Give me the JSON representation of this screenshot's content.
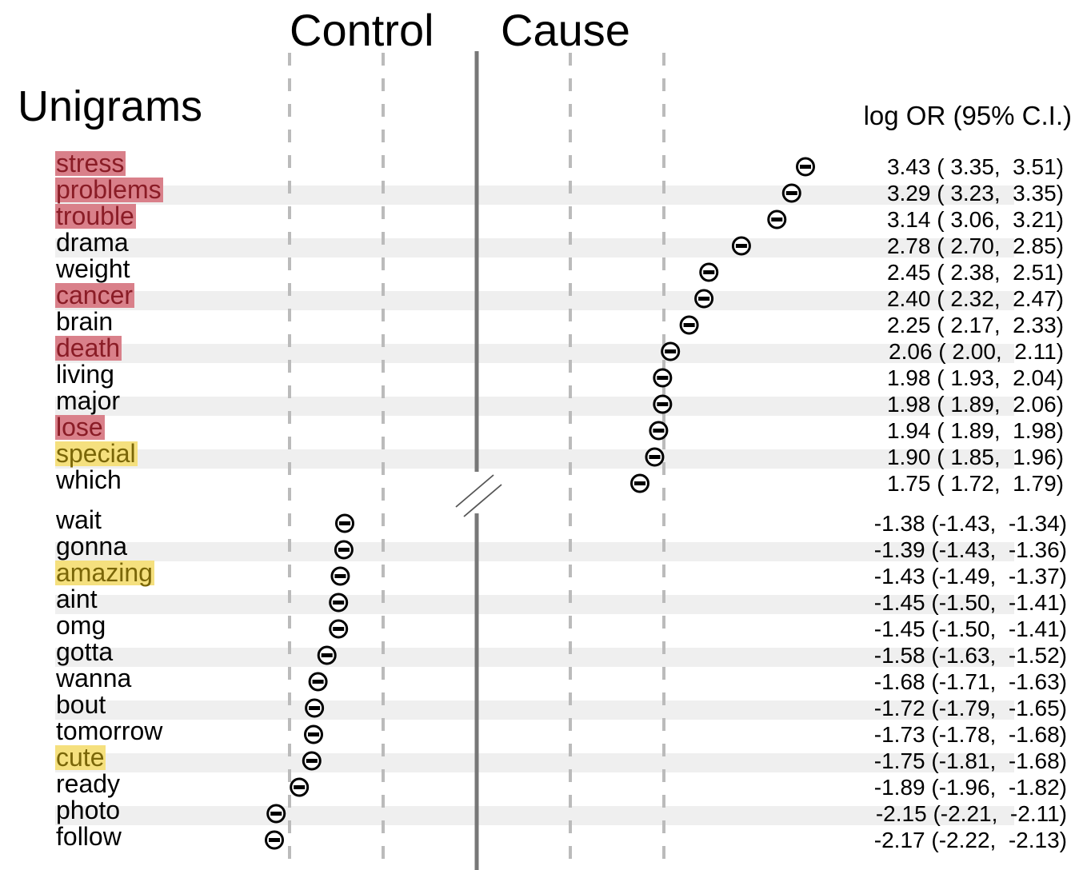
{
  "headers": {
    "control": "Control",
    "cause": "Cause",
    "section": "Unigrams",
    "or_column": "log OR (95% C.I.)"
  },
  "colors": {
    "negative_highlight": "#d9808a",
    "positive_highlight": "#f5e07e",
    "stripe": "#efefef",
    "grid": "#bbbbbb",
    "axis": "#777777"
  },
  "chart_data": {
    "type": "scatter",
    "title": "Unigrams",
    "xlabel": "",
    "ylabel": "",
    "grid": true,
    "groups": [
      {
        "name": "Cause",
        "rows": [
          {
            "word": "stress",
            "or": 3.43,
            "lo": 3.35,
            "hi": 3.51,
            "highlight": "negative",
            "or_text": "3.43",
            "lo_text": "3.35",
            "hi_text": "3.51"
          },
          {
            "word": "problems",
            "or": 3.29,
            "lo": 3.23,
            "hi": 3.35,
            "highlight": "negative",
            "or_text": "3.29",
            "lo_text": "3.23",
            "hi_text": "3.35"
          },
          {
            "word": "trouble",
            "or": 3.14,
            "lo": 3.06,
            "hi": 3.21,
            "highlight": "negative",
            "or_text": "3.14",
            "lo_text": "3.06",
            "hi_text": "3.21"
          },
          {
            "word": "drama",
            "or": 2.78,
            "lo": 2.7,
            "hi": 2.85,
            "highlight": "",
            "or_text": "2.78",
            "lo_text": "2.70",
            "hi_text": "2.85"
          },
          {
            "word": "weight",
            "or": 2.45,
            "lo": 2.38,
            "hi": 2.51,
            "highlight": "",
            "or_text": "2.45",
            "lo_text": "2.38",
            "hi_text": "2.51"
          },
          {
            "word": "cancer",
            "or": 2.4,
            "lo": 2.32,
            "hi": 2.47,
            "highlight": "negative",
            "or_text": "2.40",
            "lo_text": "2.32",
            "hi_text": "2.47"
          },
          {
            "word": "brain",
            "or": 2.25,
            "lo": 2.17,
            "hi": 2.33,
            "highlight": "",
            "or_text": "2.25",
            "lo_text": "2.17",
            "hi_text": "2.33"
          },
          {
            "word": "death",
            "or": 2.06,
            "lo": 2.0,
            "hi": 2.11,
            "highlight": "negative",
            "or_text": "2.06",
            "lo_text": "2.00",
            "hi_text": "2.11"
          },
          {
            "word": "living",
            "or": 1.98,
            "lo": 1.93,
            "hi": 2.04,
            "highlight": "",
            "or_text": "1.98",
            "lo_text": "1.93",
            "hi_text": "2.04"
          },
          {
            "word": "major",
            "or": 1.98,
            "lo": 1.89,
            "hi": 2.06,
            "highlight": "",
            "or_text": "1.98",
            "lo_text": "1.89",
            "hi_text": "2.06"
          },
          {
            "word": "lose",
            "or": 1.94,
            "lo": 1.89,
            "hi": 1.98,
            "highlight": "negative",
            "or_text": "1.94",
            "lo_text": "1.89",
            "hi_text": "1.98"
          },
          {
            "word": "special",
            "or": 1.9,
            "lo": 1.85,
            "hi": 1.96,
            "highlight": "positive",
            "or_text": "1.90",
            "lo_text": "1.85",
            "hi_text": "1.96"
          },
          {
            "word": "which",
            "or": 1.75,
            "lo": 1.72,
            "hi": 1.79,
            "highlight": "",
            "or_text": "1.75",
            "lo_text": "1.72",
            "hi_text": "1.79"
          }
        ]
      },
      {
        "name": "Control",
        "rows": [
          {
            "word": "wait",
            "or": -1.38,
            "lo": -1.43,
            "hi": -1.34,
            "highlight": "",
            "or_text": "-1.38",
            "lo_text": "-1.43",
            "hi_text": "-1.34"
          },
          {
            "word": "gonna",
            "or": -1.39,
            "lo": -1.43,
            "hi": -1.36,
            "highlight": "",
            "or_text": "-1.39",
            "lo_text": "-1.43",
            "hi_text": "-1.36"
          },
          {
            "word": "amazing",
            "or": -1.43,
            "lo": -1.49,
            "hi": -1.37,
            "highlight": "positive",
            "or_text": "-1.43",
            "lo_text": "-1.49",
            "hi_text": "-1.37"
          },
          {
            "word": "aint",
            "or": -1.45,
            "lo": -1.5,
            "hi": -1.41,
            "highlight": "",
            "or_text": "-1.45",
            "lo_text": "-1.50",
            "hi_text": "-1.41"
          },
          {
            "word": "omg",
            "or": -1.45,
            "lo": -1.5,
            "hi": -1.41,
            "highlight": "",
            "or_text": "-1.45",
            "lo_text": "-1.50",
            "hi_text": "-1.41"
          },
          {
            "word": "gotta",
            "or": -1.58,
            "lo": -1.63,
            "hi": -1.52,
            "highlight": "",
            "or_text": "-1.58",
            "lo_text": "-1.63",
            "hi_text": "-1.52"
          },
          {
            "word": "wanna",
            "or": -1.68,
            "lo": -1.71,
            "hi": -1.63,
            "highlight": "",
            "or_text": "-1.68",
            "lo_text": "-1.71",
            "hi_text": "-1.63"
          },
          {
            "word": "bout",
            "or": -1.72,
            "lo": -1.79,
            "hi": -1.65,
            "highlight": "",
            "or_text": "-1.72",
            "lo_text": "-1.79",
            "hi_text": "-1.65"
          },
          {
            "word": "tomorrow",
            "or": -1.73,
            "lo": -1.78,
            "hi": -1.68,
            "highlight": "",
            "or_text": "-1.73",
            "lo_text": "-1.78",
            "hi_text": "-1.68"
          },
          {
            "word": "cute",
            "or": -1.75,
            "lo": -1.81,
            "hi": -1.68,
            "highlight": "positive",
            "or_text": "-1.75",
            "lo_text": "-1.81",
            "hi_text": "-1.68"
          },
          {
            "word": "ready",
            "or": -1.89,
            "lo": -1.96,
            "hi": -1.82,
            "highlight": "",
            "or_text": "-1.89",
            "lo_text": "-1.96",
            "hi_text": "-1.82"
          },
          {
            "word": "photo",
            "or": -2.15,
            "lo": -2.21,
            "hi": -2.11,
            "highlight": "",
            "or_text": "-2.15",
            "lo_text": "-2.21",
            "hi_text": "-2.11"
          },
          {
            "word": "follow",
            "or": -2.17,
            "lo": -2.22,
            "hi": -2.13,
            "highlight": "",
            "or_text": "-2.17",
            "lo_text": "-2.22",
            "hi_text": "-2.13"
          }
        ]
      }
    ]
  }
}
